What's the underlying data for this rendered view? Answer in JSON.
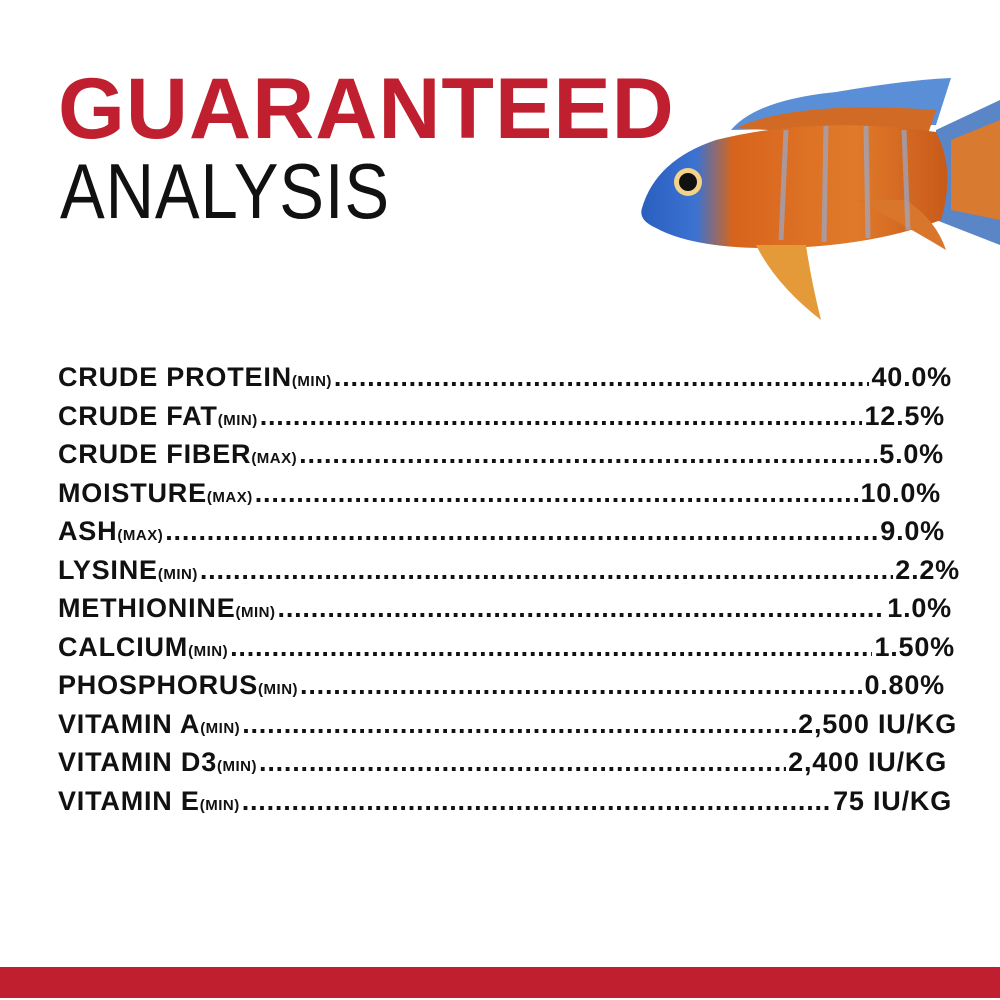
{
  "title_line1": "GUARANTEED",
  "title_line2": "ANALYSIS",
  "accent_color": "#c01f2f",
  "image": "fish-photo",
  "rows": [
    {
      "label": "CRUDE PROTEIN",
      "qualifier": "(MIN)",
      "value": "40.0%"
    },
    {
      "label": "CRUDE FAT",
      "qualifier": "(MIN)",
      "value": "12.5%"
    },
    {
      "label": "CRUDE FIBER",
      "qualifier": "(MAX)",
      "value": "5.0%"
    },
    {
      "label": "MOISTURE",
      "qualifier": "(MAX)",
      "value": "10.0%"
    },
    {
      "label": "ASH",
      "qualifier": "(MAX)",
      "value": "9.0%"
    },
    {
      "label": "LYSINE",
      "qualifier": "(MIN)",
      "value": "2.2%"
    },
    {
      "label": "METHIONINE",
      "qualifier": "(MIN)",
      "value": "1.0%"
    },
    {
      "label": "CALCIUM",
      "qualifier": "(MIN)",
      "value": "1.50%"
    },
    {
      "label": "PHOSPHORUS",
      "qualifier": "(MIN)",
      "value": "0.80%"
    },
    {
      "label": "VITAMIN A",
      "qualifier": "(MIN)",
      "value": "2,500 IU/KG"
    },
    {
      "label": "VITAMIN D3",
      "qualifier": "(MIN)",
      "value": "2,400 IU/KG"
    },
    {
      "label": "VITAMIN E",
      "qualifier": "(MIN)",
      "value": "75 IU/KG"
    }
  ]
}
